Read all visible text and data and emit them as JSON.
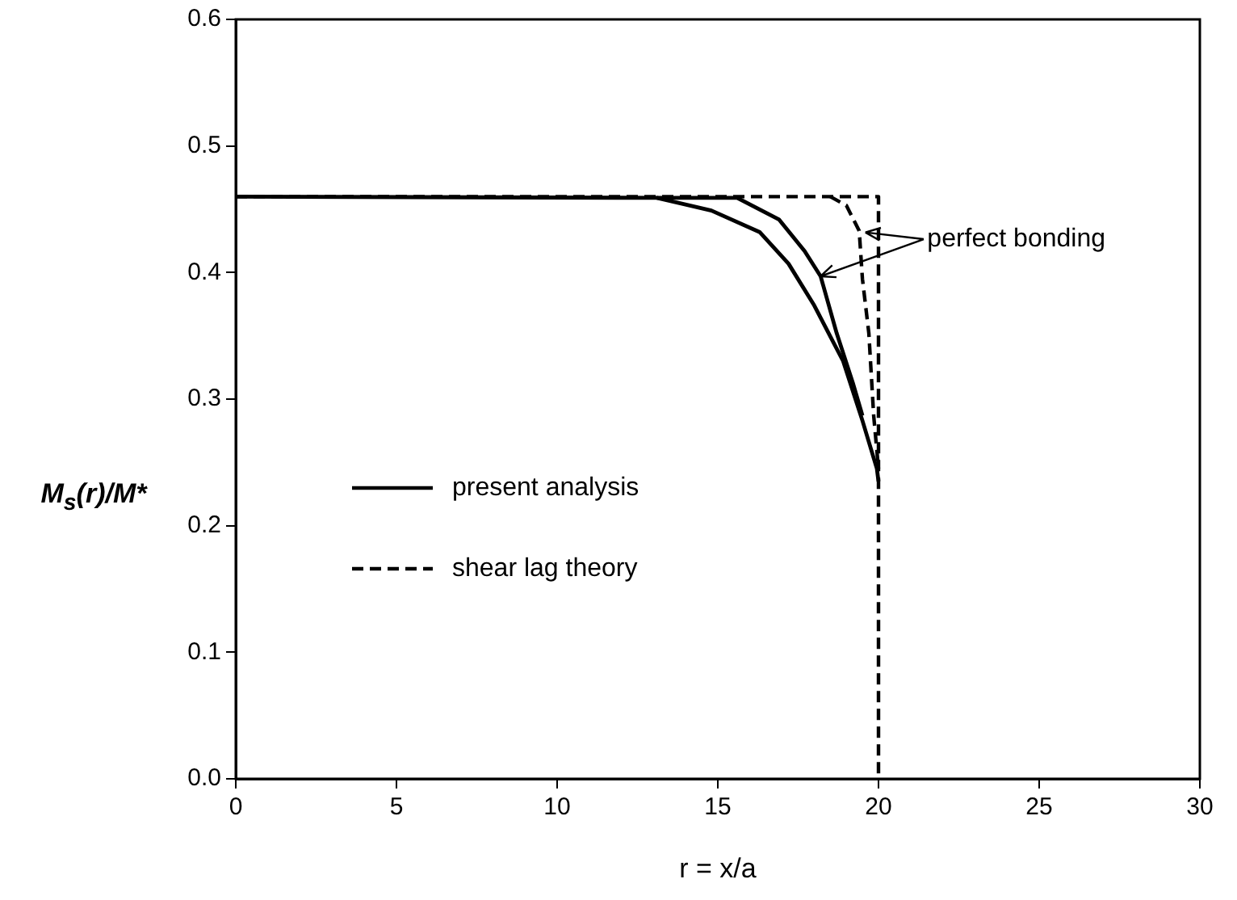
{
  "chart_data": {
    "type": "line",
    "xlabel": "r = x/a",
    "ylabel": "M$_{s}$(r)/M*",
    "xlim": [
      0,
      30
    ],
    "xticks": [
      0,
      5,
      10,
      15,
      20,
      25,
      30
    ],
    "ylim": [
      0,
      0.6
    ],
    "yticks": [
      {
        "value": 0,
        "label": "0.0"
      },
      0.1,
      0.2,
      0.3,
      0.4,
      0.5,
      0.6
    ],
    "grid": false,
    "legend": "left",
    "marker": "none",
    "annotations": [
      {
        "text": "perfect bonding",
        "x": 18.2,
        "y": 0.397
      }
    ],
    "series": [
      {
        "name": "present analysis",
        "color": "#000000",
        "line_style": "solid",
        "x": [
          0,
          13.1,
          14.8,
          16.3,
          17.2,
          18,
          18.9,
          19.5,
          19.95,
          20
        ],
        "values": [
          0.46,
          0.459,
          0.449,
          0.432,
          0.407,
          0.374,
          0.33,
          0.283,
          0.245,
          0.235
        ]
      },
      {
        "color": "#000000",
        "line_style": "solid",
        "x": [
          13.1,
          15.6,
          16.9,
          17.7,
          18.2,
          18.7,
          19.2,
          19.5
        ],
        "values": [
          0.459,
          0.459,
          0.442,
          0.417,
          0.397,
          0.352,
          0.313,
          0.287
        ]
      },
      {
        "name": "shear lag theory",
        "color": "#000000",
        "line_style": "dashed",
        "x": [
          0,
          20,
          20
        ],
        "values": [
          0.46,
          0.46,
          0
        ]
      },
      {
        "color": "#000000",
        "line_style": "dashed",
        "x": [
          18.5,
          19,
          19.4,
          19.5,
          19.7,
          19.85,
          20
        ],
        "values": [
          0.46,
          0.453,
          0.433,
          0.395,
          0.352,
          0.287,
          0.245
        ]
      }
    ]
  }
}
